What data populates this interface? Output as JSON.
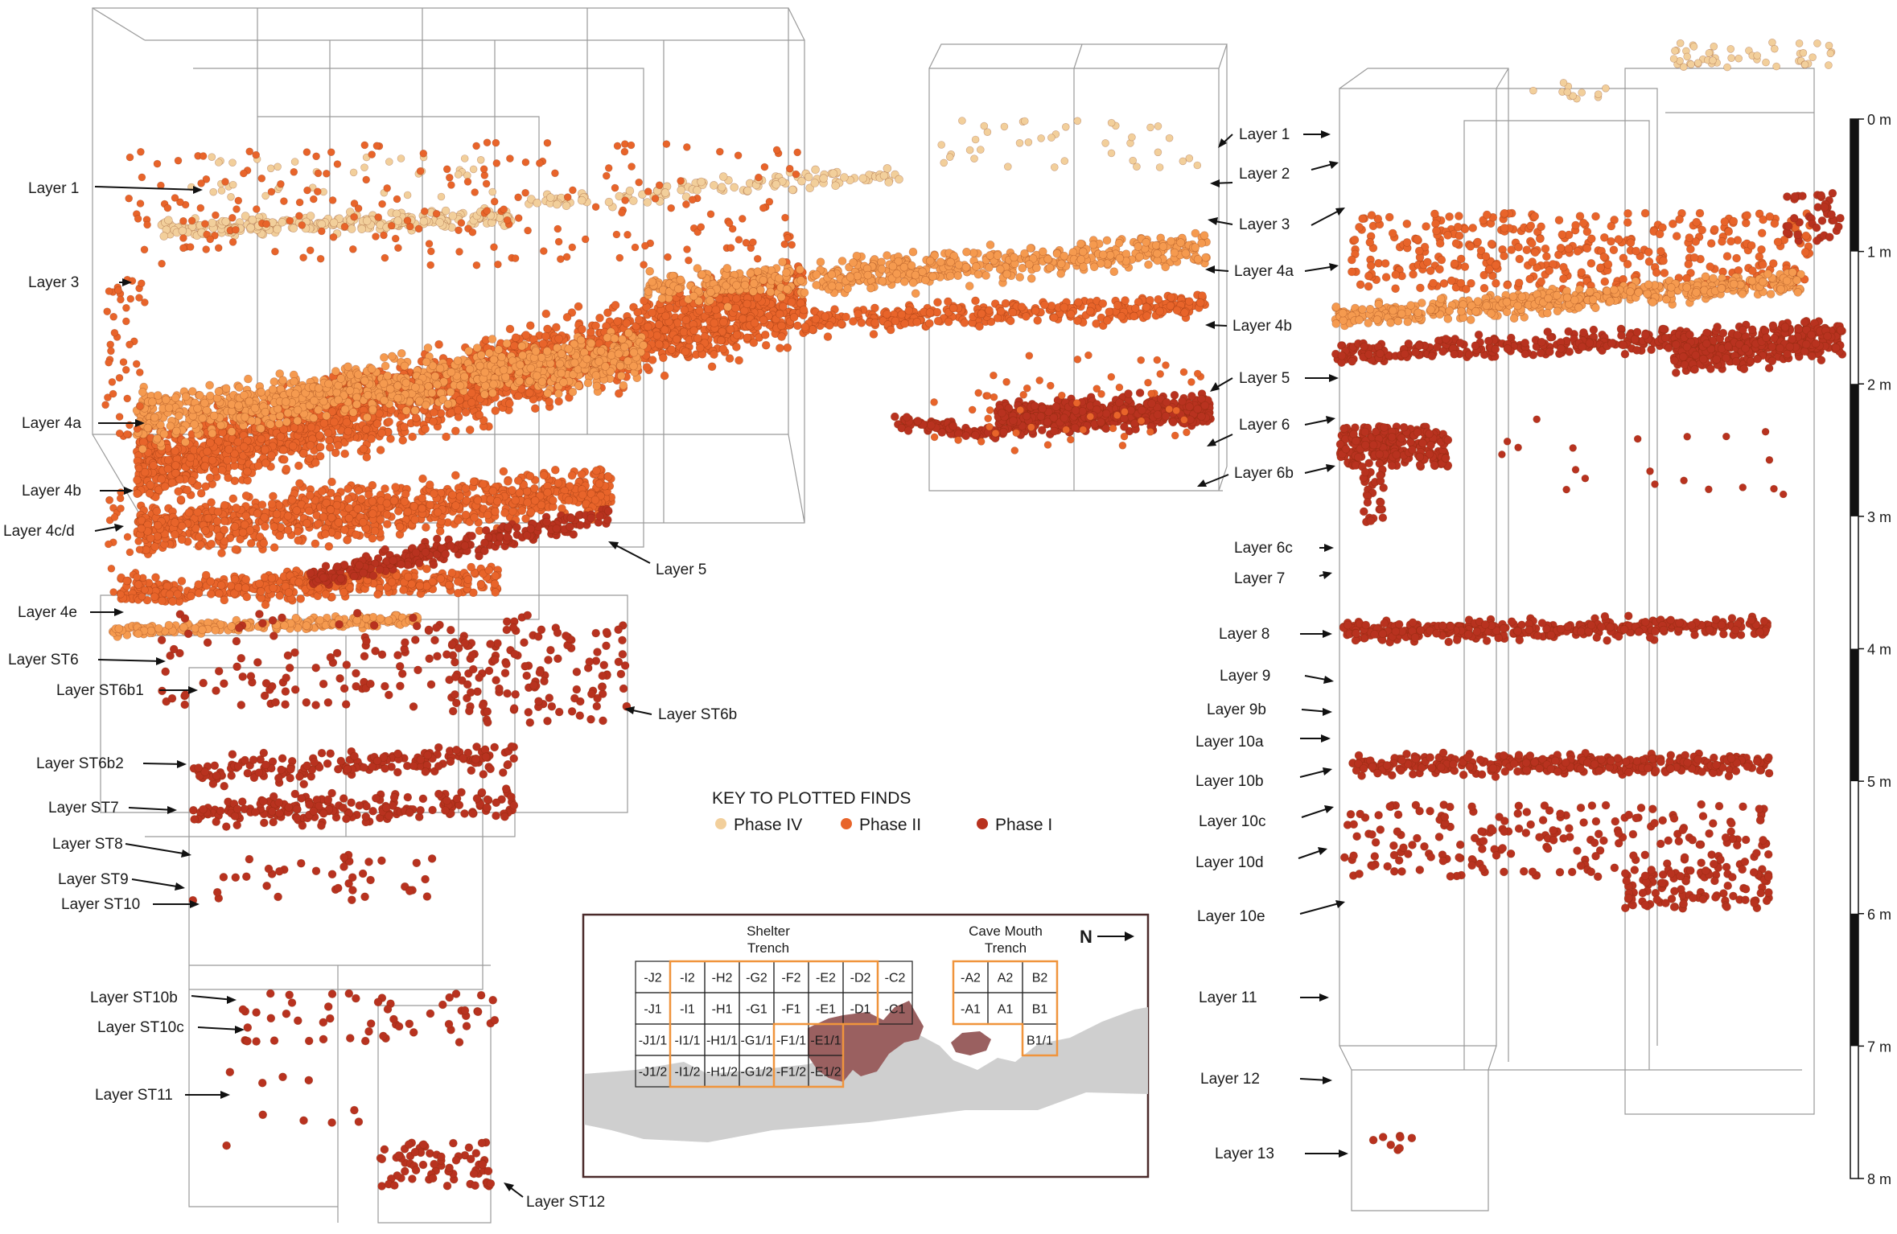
{
  "left_labels": [
    "Layer 1",
    "Layer 3",
    "Layer 4a",
    "Layer 4b",
    "Layer 4c/d",
    "Layer 5",
    "Layer 4e",
    "Layer ST6",
    "Layer ST6b1",
    "Layer ST6b",
    "Layer ST6b2",
    "Layer ST7",
    "Layer ST8",
    "Layer ST9",
    "Layer ST10",
    "Layer ST10b",
    "Layer ST10c",
    "Layer ST11",
    "Layer ST12"
  ],
  "right_labels": [
    "Layer 1",
    "Layer 2",
    "Layer 3",
    "Layer 4a",
    "Layer 4b",
    "Layer 5",
    "Layer 6",
    "Layer 6b",
    "Layer 6c",
    "Layer 7",
    "Layer 8",
    "Layer 9",
    "Layer 9b",
    "Layer 10a",
    "Layer 10b",
    "Layer 10c",
    "Layer 10d",
    "Layer 10e",
    "Layer 11",
    "Layer 12",
    "Layer 13"
  ],
  "depth_scale": {
    "ticks": [
      "0 m",
      "1 m",
      "2 m",
      "3 m",
      "4 m",
      "5 m",
      "6 m",
      "7 m",
      "8 m"
    ]
  },
  "key": {
    "title": "KEY TO PLOTTED FINDS",
    "items": [
      {
        "label": "Phase IV",
        "color": "#f2cf9b"
      },
      {
        "label": "Phase II",
        "color": "#e8642a"
      },
      {
        "label": "Phase I",
        "color": "#b8321f"
      }
    ]
  },
  "colors": {
    "phase_iv": "#f2cf9b",
    "phase_ii_light": "#f59a4f",
    "phase_ii": "#e8642a",
    "phase_i": "#b8321f",
    "trench_outline": "#f0943c",
    "rock": "#cfcfcf",
    "hearth": "#9a6060"
  },
  "inset": {
    "shelter_title_1": "Shelter",
    "shelter_title_2": "Trench",
    "cave_title_1": "Cave Mouth",
    "cave_title_2": "Trench",
    "north": "N",
    "shelter_rows": [
      [
        "-J2",
        "-I2",
        "-H2",
        "-G2",
        "-F2",
        "-E2",
        "-D2",
        "-C2"
      ],
      [
        "-J1",
        "-I1",
        "-H1",
        "-G1",
        "-F1",
        "-E1",
        "-D1",
        "-C1"
      ],
      [
        "-J1/1",
        "-I1/1",
        "-H1/1",
        "-G1/1",
        "-F1/1",
        "-E1/1"
      ],
      [
        "-J1/2",
        "-I1/2",
        "-H1/2",
        "-G1/2",
        "-F1/2",
        "-E1/2"
      ]
    ],
    "cave_rows": [
      [
        "-A2",
        "A2",
        "B2"
      ],
      [
        "-A1",
        "A1",
        "B1"
      ],
      [
        "B1/1"
      ]
    ]
  }
}
